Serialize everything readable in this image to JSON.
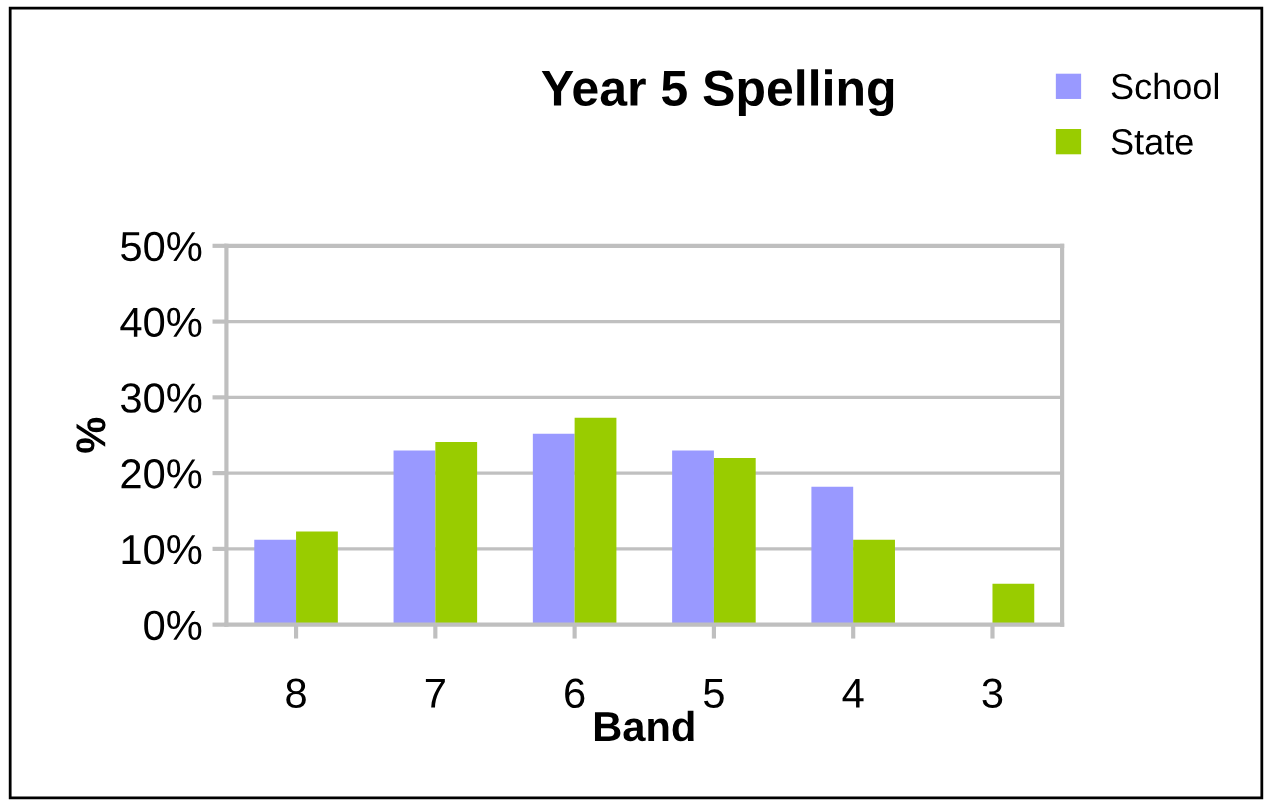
{
  "chart_data": {
    "type": "bar",
    "title": "Year 5 Spelling",
    "xlabel": "Band",
    "ylabel": "%",
    "categories": [
      "8",
      "7",
      "6",
      "5",
      "4",
      "3"
    ],
    "series": [
      {
        "name": "School",
        "color": "#9999ff",
        "values": [
          11.2,
          23,
          25.2,
          23,
          18.2,
          0
        ]
      },
      {
        "name": "State",
        "color": "#99cc00",
        "values": [
          12.3,
          24.1,
          27.3,
          22,
          11.2,
          5.4
        ]
      }
    ],
    "ylim": [
      0,
      50
    ],
    "yticks": [
      {
        "value": 0,
        "label": "0%"
      },
      {
        "value": 10,
        "label": "10%"
      },
      {
        "value": 20,
        "label": "20%"
      },
      {
        "value": 30,
        "label": "30%"
      },
      {
        "value": 40,
        "label": "40%"
      },
      {
        "value": 50,
        "label": "50%"
      }
    ],
    "grid": "y",
    "legend": "top right"
  }
}
